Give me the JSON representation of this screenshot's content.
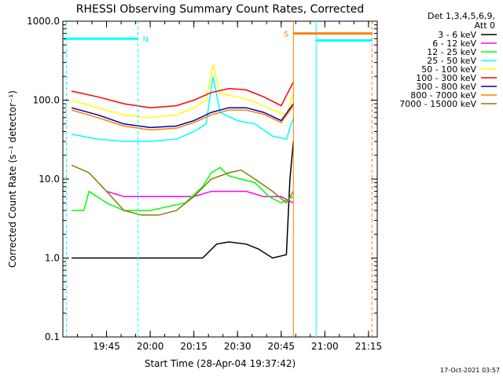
{
  "chart_data": {
    "type": "line",
    "title": "RHESSI Observing Summary Count Rates, Corrected",
    "xlabel": "Start Time (28-Apr-04 19:37:42)",
    "ylabel": "Corrected Count Rate (s⁻¹ detector⁻¹)",
    "yscale": "log",
    "ylim": [
      0.1,
      1000
    ],
    "xlim_minutes": [
      19.5,
      21.3
    ],
    "x_ticks": [
      {
        "label": "19:45",
        "value": 19.75
      },
      {
        "label": "20:00",
        "value": 20.0
      },
      {
        "label": "20:15",
        "value": 20.25
      },
      {
        "label": "20:30",
        "value": 20.5
      },
      {
        "label": "20:45",
        "value": 20.75
      },
      {
        "label": "21:00",
        "value": 21.0
      },
      {
        "label": "21:15",
        "value": 21.25
      }
    ],
    "y_ticks": [
      {
        "label": "1000.0",
        "value": 1000
      },
      {
        "label": "100.0",
        "value": 100
      },
      {
        "label": "10.0",
        "value": 10
      },
      {
        "label": "1.0",
        "value": 1
      },
      {
        "label": "0.1",
        "value": 0.1
      }
    ],
    "legend_header": [
      "Det 1,3,4,5,6,9,",
      "Att 0"
    ],
    "legend_position": "right",
    "series": [
      {
        "name": "3 - 6 keV",
        "color": "#000000",
        "x": [
          19.55,
          19.75,
          19.9,
          20.0,
          20.2,
          20.3,
          20.38,
          20.45,
          20.55,
          20.62,
          20.7,
          20.78,
          20.8,
          20.82
        ],
        "y": [
          1.0,
          1.0,
          1.0,
          1.0,
          1.0,
          1.0,
          1.5,
          1.6,
          1.5,
          1.3,
          1.0,
          1.1,
          10,
          30
        ]
      },
      {
        "name": "6 - 12 keV",
        "color": "#ff00ff",
        "x": [
          19.75,
          19.85,
          20.0,
          20.1,
          20.25,
          20.35,
          20.45,
          20.55,
          20.65,
          20.75,
          20.82
        ],
        "y": [
          7,
          6,
          6,
          6,
          6,
          7,
          7,
          7,
          6,
          6,
          5
        ]
      },
      {
        "name": "12 - 25 keV",
        "color": "#00ff00",
        "x": [
          19.55,
          19.62,
          19.65,
          19.75,
          19.85,
          20.0,
          20.2,
          20.3,
          20.35,
          20.4,
          20.45,
          20.52,
          20.6,
          20.68,
          20.75,
          20.82
        ],
        "y": [
          4,
          4,
          7,
          5,
          4,
          4,
          5,
          8,
          12,
          14,
          11,
          10,
          9,
          6,
          5,
          6
        ]
      },
      {
        "name": "25 - 50 keV",
        "color": "#00ffff",
        "x": [
          19.55,
          19.7,
          19.85,
          20.0,
          20.15,
          20.25,
          20.32,
          20.36,
          20.4,
          20.5,
          20.6,
          20.7,
          20.78,
          20.82
        ],
        "y": [
          37,
          32,
          30,
          30,
          32,
          40,
          50,
          200,
          70,
          55,
          50,
          35,
          32,
          60
        ]
      },
      {
        "name": "50 - 100 keV",
        "color": "#ffff00",
        "x": [
          19.55,
          19.7,
          19.85,
          20.0,
          20.15,
          20.25,
          20.32,
          20.36,
          20.4,
          20.5,
          20.6,
          20.7,
          20.78,
          20.82
        ],
        "y": [
          100,
          80,
          65,
          60,
          65,
          80,
          100,
          280,
          120,
          110,
          95,
          75,
          65,
          120
        ]
      },
      {
        "name": "100 - 300 keV",
        "color": "#ff0000",
        "x": [
          19.55,
          19.7,
          19.85,
          20.0,
          20.15,
          20.25,
          20.35,
          20.45,
          20.55,
          20.65,
          20.75,
          20.82
        ],
        "y": [
          130,
          110,
          90,
          80,
          85,
          100,
          125,
          140,
          135,
          110,
          85,
          170
        ]
      },
      {
        "name": "300 - 800 keV",
        "color": "#0000aa",
        "x": [
          19.55,
          19.7,
          19.85,
          20.0,
          20.15,
          20.25,
          20.35,
          20.45,
          20.55,
          20.65,
          20.75,
          20.82
        ],
        "y": [
          80,
          65,
          50,
          45,
          47,
          55,
          70,
          80,
          80,
          70,
          55,
          90
        ]
      },
      {
        "name": "800 - 7000 keV",
        "color": "#ff8000",
        "x": [
          19.55,
          19.7,
          19.85,
          20.0,
          20.15,
          20.25,
          20.35,
          20.45,
          20.55,
          20.65,
          20.75,
          20.82
        ],
        "y": [
          75,
          60,
          47,
          42,
          44,
          52,
          65,
          75,
          75,
          66,
          52,
          85
        ]
      },
      {
        "name": "7000 - 15000 keV",
        "color": "#808000",
        "x": [
          19.55,
          19.65,
          19.75,
          19.85,
          19.95,
          20.05,
          20.15,
          20.25,
          20.35,
          20.45,
          20.52,
          20.6,
          20.7,
          20.78,
          20.82
        ],
        "y": [
          15,
          12,
          7,
          4,
          3.5,
          3.5,
          4,
          6,
          10,
          12,
          13,
          10,
          7,
          5,
          7
        ]
      }
    ],
    "markers": [
      {
        "label": "N",
        "color": "#00ffff",
        "x_start": 19.5,
        "x_end": 19.93,
        "level": 600
      },
      {
        "label": "S",
        "color": "#ff8000",
        "x_start": 20.82,
        "x_end": 21.27,
        "level": 700
      },
      {
        "label": "",
        "color": "#00ffff",
        "x_start": 20.95,
        "x_end": 21.27,
        "level": 570
      }
    ],
    "vlines": [
      {
        "x": 19.52,
        "color": "#00ffff",
        "dashed": true
      },
      {
        "x": 19.93,
        "color": "#00ffff",
        "dashed": true
      },
      {
        "x": 20.82,
        "color": "#ff8000",
        "dashed": false
      },
      {
        "x": 20.95,
        "color": "#00ffff",
        "dashed": false
      },
      {
        "x": 21.27,
        "color": "#ff8000",
        "dashed": true
      }
    ],
    "grid": false
  },
  "timestamp": "17-Oct-2021 03:57"
}
